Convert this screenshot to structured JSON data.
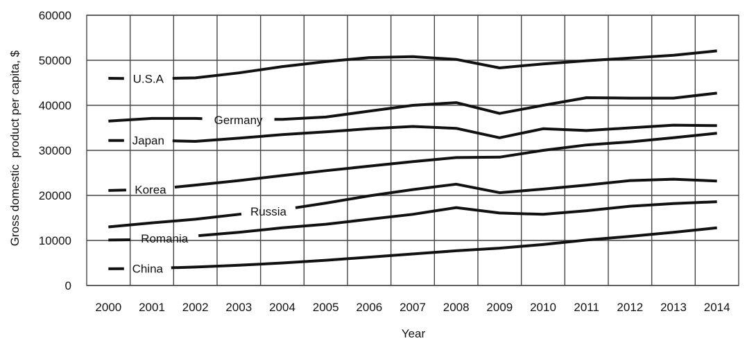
{
  "chart_data": {
    "type": "line",
    "title": "",
    "xlabel": "Year",
    "ylabel": "Gross domestic  product per capita, $",
    "x": [
      2000,
      2001,
      2002,
      2003,
      2004,
      2005,
      2006,
      2007,
      2008,
      2009,
      2010,
      2011,
      2012,
      2013,
      2014
    ],
    "x_tick_labels": [
      "2000",
      "2001",
      "2002",
      "2003",
      "2004",
      "2005",
      "2006",
      "2007",
      "2008",
      "2009",
      "2010",
      "2011",
      "2012",
      "2013",
      "2014"
    ],
    "ylim": [
      0,
      60000
    ],
    "y_ticks": [
      0,
      10000,
      20000,
      30000,
      40000,
      50000,
      60000
    ],
    "y_tick_labels": [
      "0",
      "10000",
      "20000",
      "30000",
      "40000",
      "50000",
      "60000"
    ],
    "grid": true,
    "legend": "none (series labelled inline)",
    "series": [
      {
        "name": "U.S.A",
        "values": [
          46000,
          45900,
          46100,
          47200,
          48600,
          49700,
          50600,
          50800,
          50200,
          48300,
          49200,
          49900,
          50500,
          51100,
          52100
        ]
      },
      {
        "name": "Germany",
        "values": [
          36500,
          37100,
          37100,
          36800,
          36900,
          37400,
          38700,
          40000,
          40600,
          38200,
          40000,
          41700,
          41600,
          41600,
          42700
        ]
      },
      {
        "name": "Japan",
        "values": [
          32200,
          32200,
          32000,
          32700,
          33500,
          34100,
          34800,
          35300,
          34900,
          32800,
          34800,
          34400,
          35000,
          35600,
          35500
        ]
      },
      {
        "name": "Korea",
        "values": [
          21100,
          21300,
          22300,
          23300,
          24400,
          25500,
          26500,
          27500,
          28400,
          28500,
          30000,
          31200,
          31900,
          32800,
          33800
        ]
      },
      {
        "name": "Russia",
        "values": [
          13000,
          13900,
          14700,
          15800,
          16800,
          18300,
          19900,
          21300,
          22500,
          20600,
          21400,
          22300,
          23300,
          23600,
          23200
        ]
      },
      {
        "name": "Romania",
        "values": [
          10100,
          10200,
          11000,
          11800,
          12800,
          13600,
          14700,
          15800,
          17300,
          16100,
          15800,
          16600,
          17600,
          18200,
          18600
        ]
      },
      {
        "name": "China",
        "values": [
          3700,
          3800,
          4100,
          4500,
          5000,
          5600,
          6300,
          7000,
          7700,
          8300,
          9100,
          10100,
          10900,
          11800,
          12800
        ]
      }
    ]
  }
}
